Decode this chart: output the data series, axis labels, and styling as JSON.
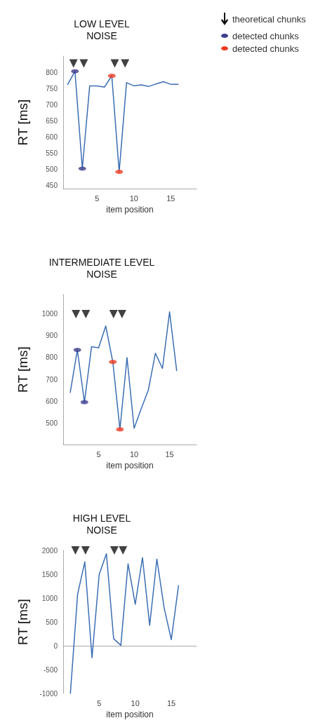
{
  "chart_data": [
    {
      "type": "line",
      "title": "LOW LEVEL\nNOISE",
      "xlabel": "item position",
      "ylabel": "RT [ms]",
      "xlim": [
        0.4,
        18.5
      ],
      "xticks": [
        5,
        10,
        15
      ],
      "ylim": [
        440,
        850
      ],
      "yticks": [
        450,
        500,
        550,
        600,
        650,
        700,
        750,
        800
      ],
      "legend": "top right",
      "series": [
        {
          "color": "#3b6eb5",
          "marker": "none",
          "x": [
            1,
            2,
            3,
            4,
            5,
            6,
            7,
            8,
            9,
            10,
            11,
            12,
            13,
            14,
            15,
            16
          ],
          "values": [
            762,
            803,
            502,
            758,
            758,
            754,
            789,
            492,
            768,
            758,
            761,
            756,
            764,
            771,
            763,
            763
          ]
        },
        {
          "type": "scatter",
          "name": "theoretical chunks",
          "color": "#111111",
          "marker": "triangle",
          "x": [
            1.8,
            3.2,
            7.4,
            8.8
          ],
          "values": [
            827,
            827,
            827,
            827
          ]
        },
        {
          "type": "scatter",
          "name": "detected chunks",
          "color": "#3c3c8c",
          "marker": "circle",
          "x": [
            2,
            3
          ],
          "values": [
            803,
            502
          ]
        },
        {
          "type": "scatter",
          "name": "detected chunks",
          "color": "#f03a22",
          "marker": "circle",
          "x": [
            7,
            8
          ],
          "values": [
            789,
            492
          ]
        }
      ]
    },
    {
      "type": "line",
      "title": "INTERMEDIATE LEVEL\nNOISE",
      "xlabel": "item position",
      "ylabel": "RT [ms]",
      "xlim": [
        0,
        18.8
      ],
      "xticks": [
        5,
        10,
        15
      ],
      "ylim": [
        400,
        1090
      ],
      "yticks": [
        500,
        600,
        700,
        800,
        900,
        1000
      ],
      "series": [
        {
          "color": "#3b6eb5",
          "marker": "none",
          "x": [
            1,
            2,
            3,
            4,
            5,
            6,
            7,
            8,
            9,
            10,
            11,
            12,
            13,
            14,
            15,
            16
          ],
          "values": [
            640,
            835,
            595,
            850,
            845,
            945,
            780,
            470,
            800,
            475,
            565,
            650,
            820,
            750,
            1010,
            740
          ]
        },
        {
          "type": "scatter",
          "color": "#111111",
          "marker": "triangle",
          "x": [
            1.8,
            3.2,
            7.1,
            8.3
          ],
          "values": [
            1000,
            1000,
            1000,
            1000
          ]
        },
        {
          "type": "scatter",
          "color": "#3c3c8c",
          "marker": "circle",
          "x": [
            2,
            3
          ],
          "values": [
            835,
            595
          ]
        },
        {
          "type": "scatter",
          "color": "#f03a22",
          "marker": "circle",
          "x": [
            7,
            8
          ],
          "values": [
            780,
            470
          ]
        }
      ]
    },
    {
      "type": "line",
      "title": "HIGH LEVEL\nNOISE",
      "xlabel": "item position",
      "ylabel": "RT [ms]",
      "xlim": [
        0,
        18.5
      ],
      "xticks": [
        5,
        10,
        15
      ],
      "ylim": [
        -1000,
        2000
      ],
      "yticks": [
        -1000,
        -500,
        0,
        500,
        1000,
        1500,
        2000
      ],
      "series": [
        {
          "color": "#3b6eb5",
          "marker": "none",
          "x": [
            1,
            2,
            3,
            4,
            5,
            6,
            7,
            8,
            9,
            10,
            11,
            12,
            13,
            14,
            15,
            16
          ],
          "values": [
            -1000,
            1080,
            1760,
            -250,
            1500,
            1930,
            150,
            10,
            1720,
            870,
            1850,
            430,
            1820,
            800,
            130,
            1260
          ]
        },
        {
          "type": "scatter",
          "color": "#111111",
          "marker": "triangle",
          "x": [
            1.7,
            3.1,
            7.1,
            8.3
          ],
          "values": [
            2000,
            2000,
            2000,
            2000
          ]
        }
      ]
    }
  ]
}
